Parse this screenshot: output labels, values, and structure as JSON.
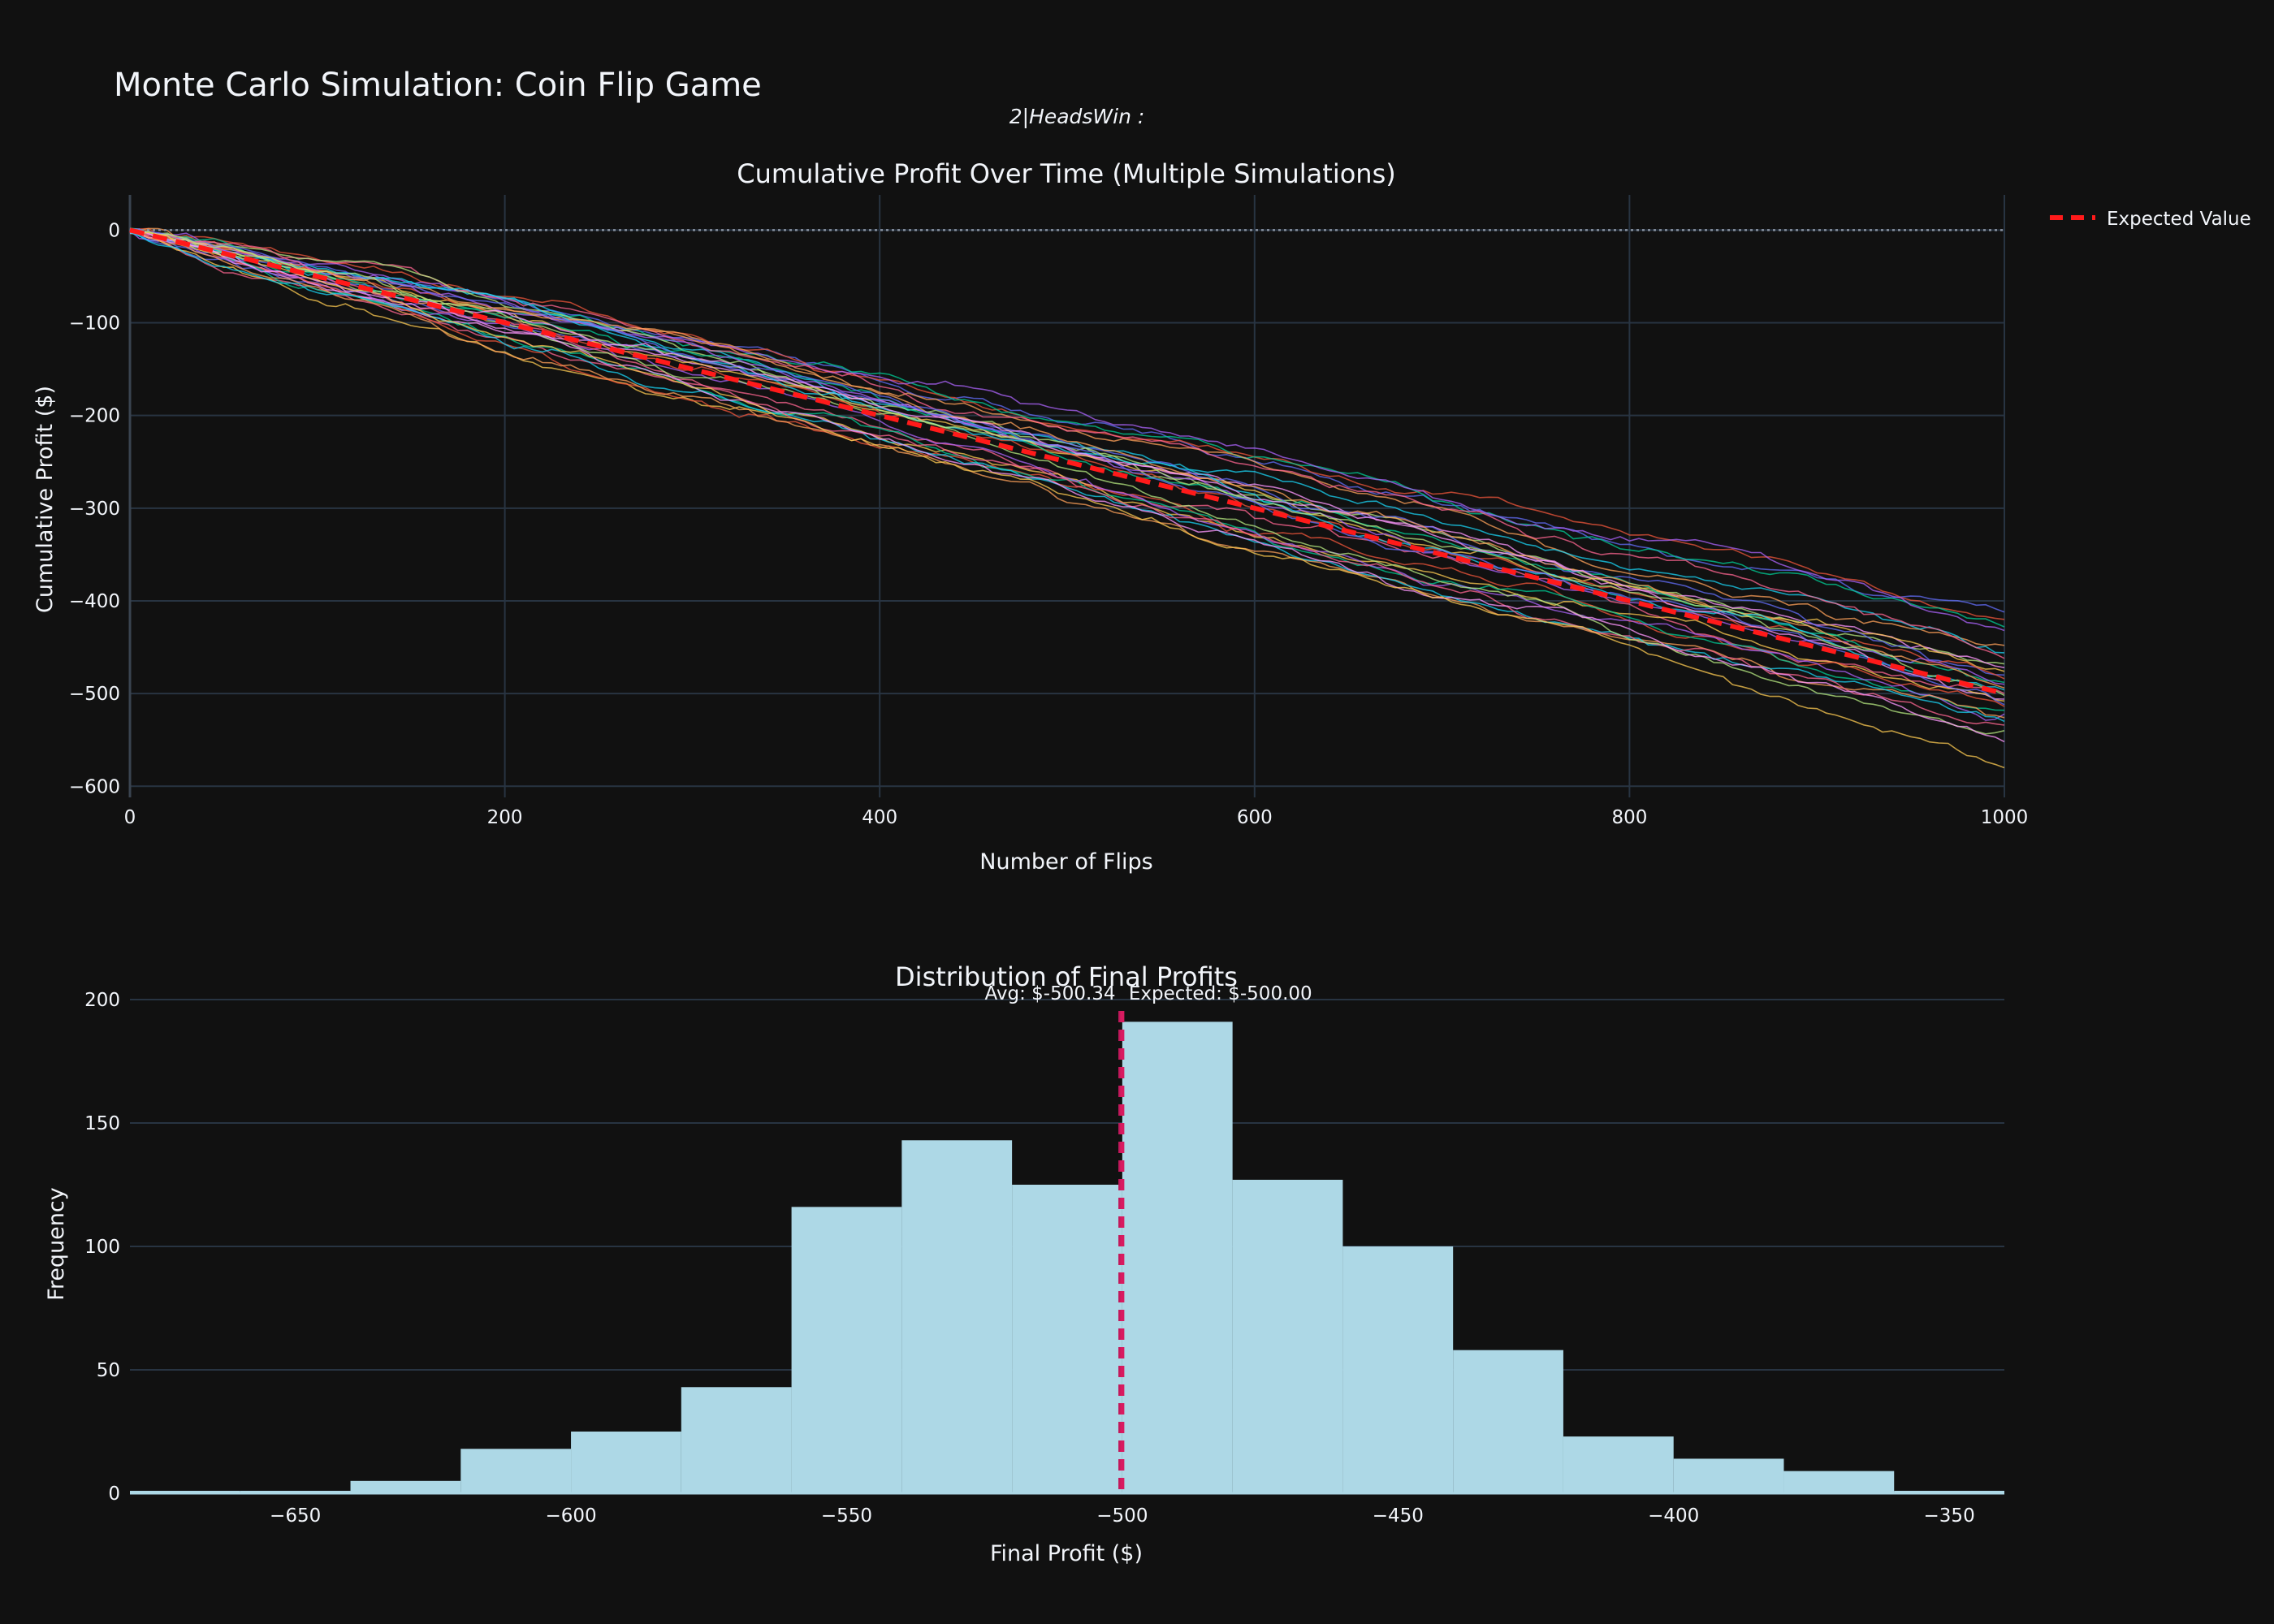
{
  "figure": {
    "title": "Monte Carlo Simulation: Coin Flip Game",
    "subtitle": "2|HeadsWin :"
  },
  "colors": {
    "background": "#111111",
    "grid": "#283442",
    "text": "#f2f5fa",
    "expected_line": "#ff1a1a",
    "histogram_fill": "#add8e6",
    "vline": "#c2185b",
    "trace_palette": [
      "#636efa",
      "#ef553b",
      "#00cc96",
      "#ab63fa",
      "#ffa15a",
      "#19d3f3",
      "#ff6692",
      "#b6e880",
      "#ff97ff",
      "#fecb52"
    ]
  },
  "chart_data": [
    {
      "type": "line",
      "title": "Cumulative Profit Over Time (Multiple Simulations)",
      "xlabel": "Number of Flips",
      "ylabel": "Cumulative Profit ($)",
      "xlim": [
        0,
        1000
      ],
      "ylim": [
        -612,
        38
      ],
      "xticks": [
        0,
        200,
        400,
        600,
        800,
        1000
      ],
      "yticks": [
        0,
        -100,
        -200,
        -300,
        -400,
        -500,
        -600
      ],
      "grid": true,
      "legend": {
        "placement": "top-right",
        "entries": [
          "Expected Value"
        ]
      },
      "reference_line": {
        "y": 0,
        "style": "dotted"
      },
      "expected_value": {
        "name": "Expected Value",
        "x": [
          0,
          1000
        ],
        "y": [
          0,
          -500
        ]
      },
      "simulations": {
        "count": 30,
        "n_flips": 1000,
        "final_values": [
          -412,
          -420,
          -428,
          -432,
          -448,
          -456,
          -462,
          -468,
          -472,
          -476,
          -480,
          -484,
          -488,
          -490,
          -494,
          -496,
          -500,
          -502,
          -506,
          -508,
          -512,
          -514,
          -518,
          -522,
          -526,
          -530,
          -534,
          -540,
          -552,
          -580
        ]
      }
    },
    {
      "type": "bar",
      "title": "Distribution of Final Profits",
      "xlabel": "Final Profit ($)",
      "ylabel": "Frequency",
      "xlim": [
        -680,
        -340
      ],
      "ylim": [
        0,
        200
      ],
      "xticks": [
        -650,
        -600,
        -550,
        -500,
        -450,
        -400,
        -350
      ],
      "yticks": [
        0,
        50,
        100,
        150,
        200
      ],
      "grid": true,
      "bin_width": 20,
      "bins": [
        {
          "start": -680,
          "end": -660,
          "count": 1
        },
        {
          "start": -660,
          "end": -640,
          "count": 1
        },
        {
          "start": -640,
          "end": -620,
          "count": 5
        },
        {
          "start": -620,
          "end": -600,
          "count": 18
        },
        {
          "start": -600,
          "end": -580,
          "count": 25
        },
        {
          "start": -580,
          "end": -560,
          "count": 43
        },
        {
          "start": -560,
          "end": -540,
          "count": 116
        },
        {
          "start": -540,
          "end": -520,
          "count": 143
        },
        {
          "start": -520,
          "end": -500,
          "count": 125
        },
        {
          "start": -500,
          "end": -480,
          "count": 191
        },
        {
          "start": -480,
          "end": -460,
          "count": 127
        },
        {
          "start": -460,
          "end": -440,
          "count": 100
        },
        {
          "start": -440,
          "end": -420,
          "count": 58
        },
        {
          "start": -420,
          "end": -400,
          "count": 23
        },
        {
          "start": -400,
          "end": -380,
          "count": 14
        },
        {
          "start": -380,
          "end": -360,
          "count": 9
        },
        {
          "start": -360,
          "end": -340,
          "count": 1
        }
      ],
      "vlines": [
        {
          "x": -500.34,
          "label": "Avg: $-500.34",
          "anchor": "end"
        },
        {
          "x": -500.0,
          "label": "Expected: $-500.00",
          "anchor": "start"
        }
      ]
    }
  ]
}
